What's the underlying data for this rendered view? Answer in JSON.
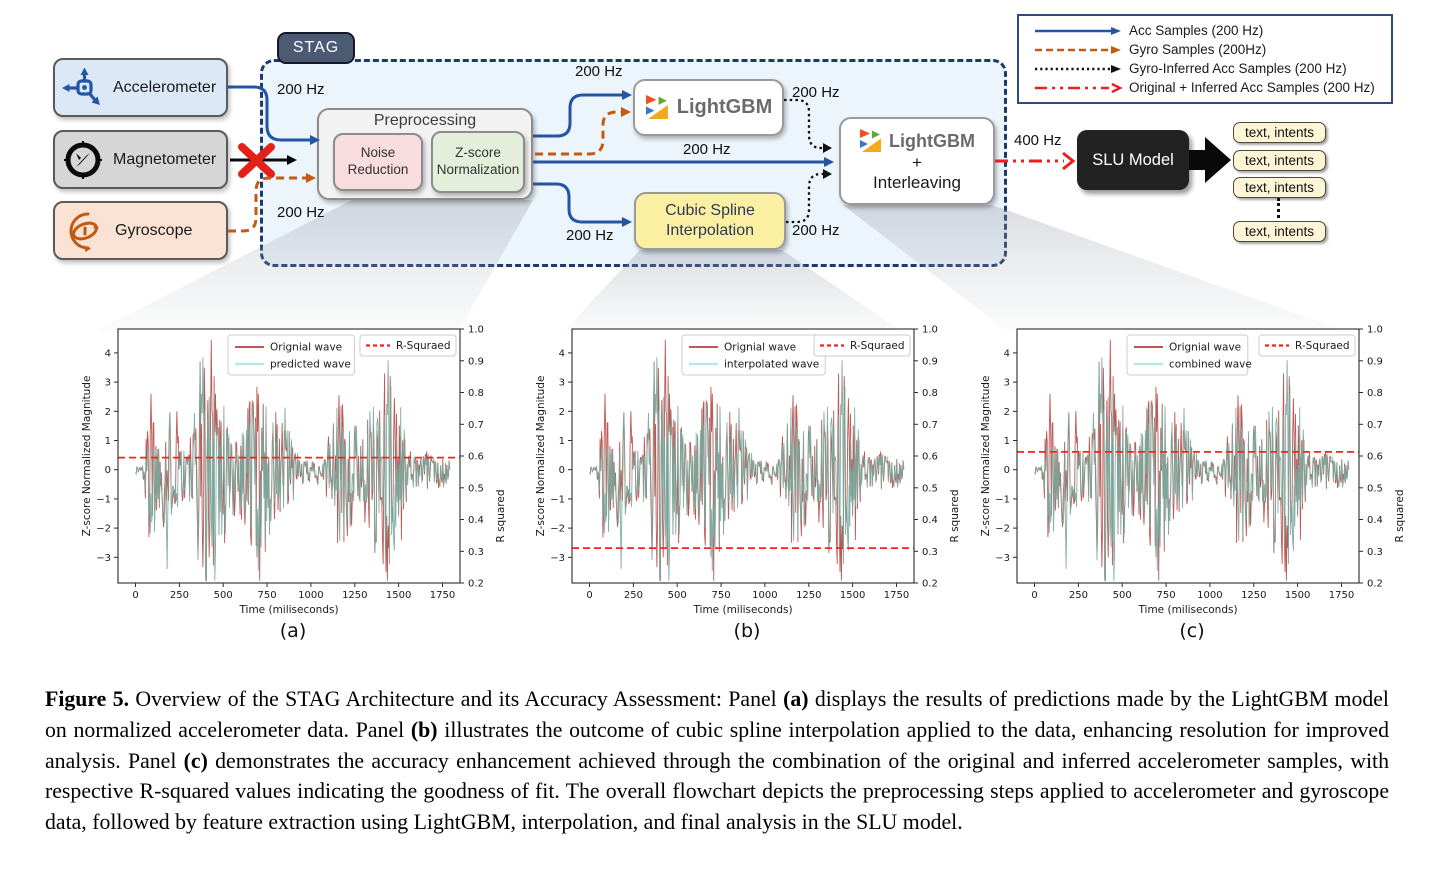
{
  "flowchart": {
    "stag_label": "STAG",
    "sensors": [
      {
        "label": "Accelerometer"
      },
      {
        "label": "Magnetometer"
      },
      {
        "label": "Gyroscope"
      }
    ],
    "preprocessing": {
      "title": "Preprocessing",
      "noise": "Noise\nReduction",
      "zscore": "Z-score\nNormalization"
    },
    "lightgbm_label": "LightGBM",
    "cubic_spline": "Cubic Spline\nInterpolation",
    "interleave": {
      "brand": "LightGBM",
      "plus": "+",
      "label": "Interleaving"
    },
    "slu_label": "SLU Model",
    "outputs": [
      "text, intents",
      "text, intents",
      "text, intents",
      "text, intents"
    ],
    "rates": {
      "acc_in": "200 Hz",
      "gyro_in": "200 Hz",
      "pre_to_lgbm": "200 Hz",
      "lgbm_out": "200 Hz",
      "mid": "200 Hz",
      "pre_to_cubic": "200 Hz",
      "cubic_out": "200 Hz",
      "slu_in": "400 Hz"
    },
    "legend": {
      "items": [
        {
          "label": "Acc Samples (200 Hz)",
          "style": "solid",
          "color": "#2355a4"
        },
        {
          "label": "Gyro Samples (200Hz)",
          "style": "dashed",
          "color": "#c55a11"
        },
        {
          "label": "Gyro-Inferred Acc Samples (200 Hz)",
          "style": "dotted",
          "color": "#111111"
        },
        {
          "label": "Original + Inferred Acc Samples (200 Hz)",
          "style": "dashdot",
          "color": "#ee1c25"
        }
      ]
    },
    "colors": {
      "acc_blue": "#2355a4",
      "gyro_orange": "#c55a11",
      "inferred_black": "#111111",
      "combined_red": "#ee1c25",
      "stag_border": "#1e3a6d",
      "stag_fill": "#e9f2fb",
      "x_mark_red": "#e32119"
    }
  },
  "chart_data": {
    "type": "line",
    "xlabel": "Time (miliseconds)",
    "ylabel_left": "Z-score Normalized Magnitude",
    "ylabel_right": "R squared",
    "x_ticks": [
      0,
      250,
      500,
      750,
      1000,
      1250,
      1500,
      1750
    ],
    "xlim": [
      -100,
      1850
    ],
    "ylim_left": [
      -3.88,
      4.82
    ],
    "y_ticks_left": [
      -3,
      -2,
      -1,
      0,
      1,
      2,
      3,
      4
    ],
    "ylim_right": [
      0.2,
      1.0
    ],
    "y_ticks_right": [
      0.2,
      0.3,
      0.4,
      0.5,
      0.6,
      0.7,
      0.8,
      0.9,
      1.0
    ],
    "series_colors": {
      "original": "#bd5955",
      "secondary": "#79a89d",
      "secondary_legend": "#b2ece4",
      "r_line": "#ff1f1f"
    },
    "panels": [
      {
        "id": "a",
        "panel_label": "(a)",
        "series_labels": [
          "Orignial wave",
          "predicted wave"
        ],
        "r_squared_label": "R-Squraed",
        "r_squared": 0.595
      },
      {
        "id": "b",
        "panel_label": "(b)",
        "series_labels": [
          "Orignial wave",
          "interpolated wave"
        ],
        "r_squared_label": "R-Squraed",
        "r_squared": 0.31
      },
      {
        "id": "c",
        "panel_label": "(c)",
        "series_labels": [
          "Orignial wave",
          "combined wave"
        ],
        "r_squared_label": "R-Squraed",
        "r_squared": 0.613
      }
    ],
    "envelope": [
      [
        0,
        0.12
      ],
      [
        40,
        0.18
      ],
      [
        65,
        1.2
      ],
      [
        95,
        2.3
      ],
      [
        125,
        1.0
      ],
      [
        155,
        1.7
      ],
      [
        185,
        2.1
      ],
      [
        215,
        0.9
      ],
      [
        245,
        1.4
      ],
      [
        275,
        0.85
      ],
      [
        305,
        0.8
      ],
      [
        335,
        1.8
      ],
      [
        365,
        3.4
      ],
      [
        395,
        3.8
      ],
      [
        430,
        4.1
      ],
      [
        465,
        2.8
      ],
      [
        495,
        2.3
      ],
      [
        525,
        1.7
      ],
      [
        555,
        1.2
      ],
      [
        585,
        1.05
      ],
      [
        615,
        1.35
      ],
      [
        645,
        2.1
      ],
      [
        675,
        2.6
      ],
      [
        705,
        2.9
      ],
      [
        735,
        1.9
      ],
      [
        765,
        1.75
      ],
      [
        795,
        1.85
      ],
      [
        825,
        1.45
      ],
      [
        855,
        1.65
      ],
      [
        885,
        1.05
      ],
      [
        915,
        0.55
      ],
      [
        945,
        0.32
      ],
      [
        1005,
        0.28
      ],
      [
        1065,
        0.38
      ],
      [
        1100,
        0.95
      ],
      [
        1135,
        1.7
      ],
      [
        1165,
        2.3
      ],
      [
        1205,
        1.65
      ],
      [
        1245,
        1.45
      ],
      [
        1285,
        1.05
      ],
      [
        1325,
        1.35
      ],
      [
        1365,
        2.1
      ],
      [
        1405,
        2.8
      ],
      [
        1435,
        3.3
      ],
      [
        1465,
        2.5
      ],
      [
        1505,
        2.1
      ],
      [
        1535,
        1.0
      ],
      [
        1565,
        0.55
      ],
      [
        1605,
        0.42
      ],
      [
        1655,
        0.48
      ],
      [
        1705,
        0.38
      ],
      [
        1755,
        0.42
      ],
      [
        1795,
        0.28
      ]
    ],
    "peaks": [
      {
        "t": 432,
        "v": 4.45,
        "series": 0
      },
      {
        "t": 88,
        "v": 2.6,
        "series": 0
      },
      {
        "t": 236,
        "v": 2.0,
        "series": 0
      },
      {
        "t": 384,
        "v": 3.85,
        "series": 1
      },
      {
        "t": 368,
        "v": 3.65,
        "series": 1
      },
      {
        "t": 1440,
        "v": 3.75,
        "series": 1
      },
      {
        "t": 1428,
        "v": -3.5,
        "series": 0
      },
      {
        "t": 180,
        "v": -3.4,
        "series": 1
      },
      {
        "t": 420,
        "v": -3.0,
        "series": 0
      },
      {
        "t": 692,
        "v": -3.0,
        "series": 1
      },
      {
        "t": 1160,
        "v": 2.55,
        "series": 0
      },
      {
        "t": 456,
        "v": 2.6,
        "series": 0
      },
      {
        "t": 1476,
        "v": 2.45,
        "series": 0
      },
      {
        "t": 700,
        "v": 2.6,
        "series": 0
      }
    ]
  },
  "figure": {
    "caption_segments": [
      {
        "text": "Figure 5.",
        "bold": true
      },
      {
        "text": " Overview of the STAG Architecture and its Accuracy Assessment: Panel ",
        "bold": false
      },
      {
        "text": "(a)",
        "bold": true
      },
      {
        "text": " displays the results of predictions made by the LightGBM model on normalized accelerometer data. Panel ",
        "bold": false
      },
      {
        "text": "(b)",
        "bold": true
      },
      {
        "text": " illustrates the outcome of cubic spline interpolation applied to the data, enhancing resolution for improved analysis. Panel ",
        "bold": false
      },
      {
        "text": "(c)",
        "bold": true
      },
      {
        "text": " demonstrates the accuracy enhancement achieved through the combination of the original and inferred accelerometer samples, with respective R-squared values indicating the goodness of fit. The overall flowchart depicts the preprocessing steps applied to accelerometer and gyroscope data, followed by feature extraction using LightGBM, interpolation, and final analysis in the SLU model.",
        "bold": false
      }
    ]
  }
}
